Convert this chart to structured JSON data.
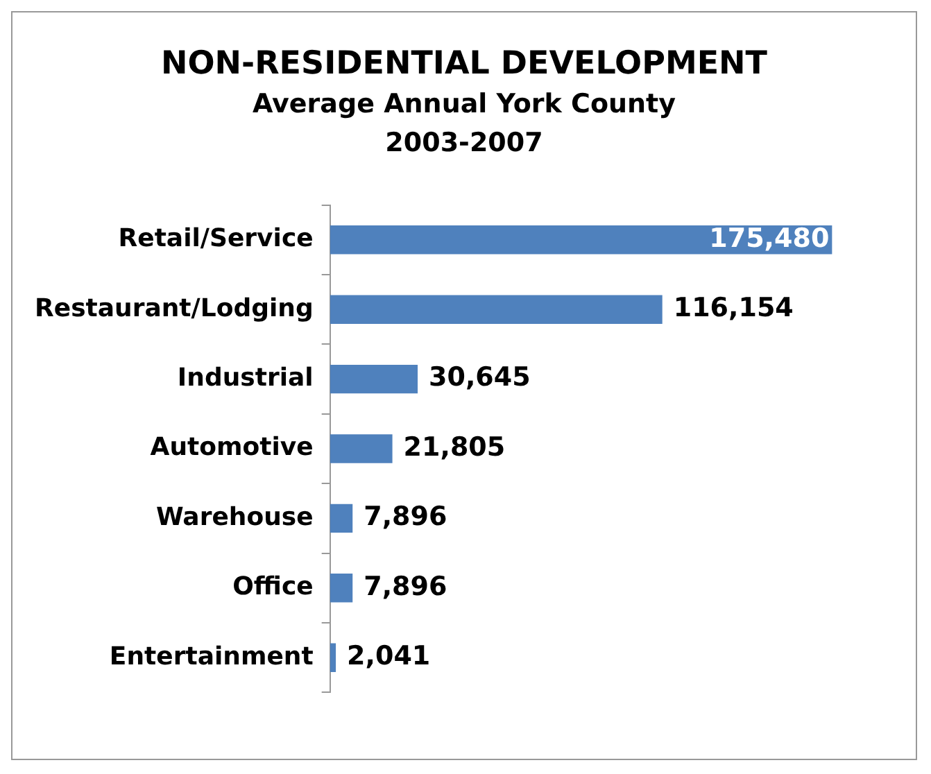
{
  "chart_data": {
    "type": "bar",
    "orientation": "horizontal",
    "title": "NON-RESIDENTIAL DEVELOPMENT",
    "subtitle": "Average Annual York County 2003-2007",
    "categories": [
      "Retail/Service",
      "Restaurant/Lodging",
      "Industrial",
      "Automotive",
      "Warehouse",
      "Office",
      "Entertainment"
    ],
    "values": [
      175480,
      116154,
      30645,
      21805,
      7896,
      7896,
      2041
    ],
    "value_labels": [
      "175,480",
      "116,154",
      "30,645",
      "21,805",
      "7,896",
      "7,896",
      "2,041"
    ],
    "color": "#4f81bd",
    "grid": false,
    "legend": false
  }
}
